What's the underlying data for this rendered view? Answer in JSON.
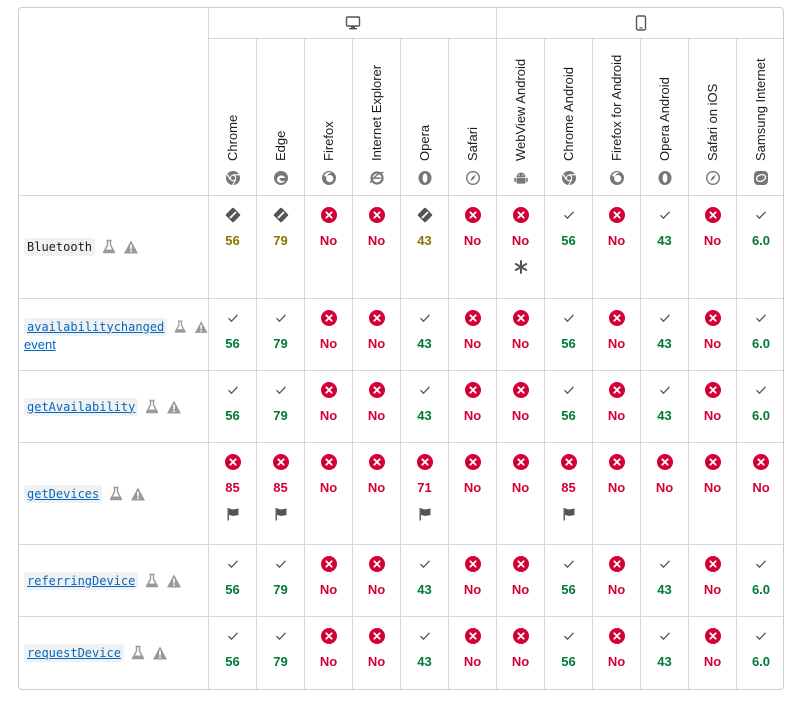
{
  "platforms": [
    {
      "name": "desktop-icon",
      "span": 6
    },
    {
      "name": "mobile-icon",
      "span": 6
    }
  ],
  "browsers": [
    {
      "label": "Chrome",
      "icon": "chrome"
    },
    {
      "label": "Edge",
      "icon": "edge"
    },
    {
      "label": "Firefox",
      "icon": "firefox"
    },
    {
      "label": "Internet Explorer",
      "icon": "ie"
    },
    {
      "label": "Opera",
      "icon": "opera"
    },
    {
      "label": "Safari",
      "icon": "safari"
    },
    {
      "label": "WebView Android",
      "icon": "webview"
    },
    {
      "label": "Chrome Android",
      "icon": "chrome"
    },
    {
      "label": "Firefox for Android",
      "icon": "firefox"
    },
    {
      "label": "Opera Android",
      "icon": "opera"
    },
    {
      "label": "Safari on iOS",
      "icon": "safari"
    },
    {
      "label": "Samsung Internet",
      "icon": "samsung"
    }
  ],
  "features": [
    {
      "name": "Bluetooth",
      "link": false,
      "event": "",
      "support": [
        {
          "t": "partial",
          "v": "56"
        },
        {
          "t": "partial",
          "v": "79"
        },
        {
          "t": "no",
          "v": "No"
        },
        {
          "t": "no",
          "v": "No"
        },
        {
          "t": "partial",
          "v": "43"
        },
        {
          "t": "no",
          "v": "No"
        },
        {
          "t": "no",
          "v": "No",
          "note": "asterisk"
        },
        {
          "t": "yes",
          "v": "56"
        },
        {
          "t": "no",
          "v": "No"
        },
        {
          "t": "yes",
          "v": "43"
        },
        {
          "t": "no",
          "v": "No"
        },
        {
          "t": "yes",
          "v": "6.0"
        }
      ]
    },
    {
      "name": "availabilitychanged",
      "link": true,
      "event": "event",
      "support": [
        {
          "t": "yes",
          "v": "56"
        },
        {
          "t": "yes",
          "v": "79"
        },
        {
          "t": "no",
          "v": "No"
        },
        {
          "t": "no",
          "v": "No"
        },
        {
          "t": "yes",
          "v": "43"
        },
        {
          "t": "no",
          "v": "No"
        },
        {
          "t": "no",
          "v": "No"
        },
        {
          "t": "yes",
          "v": "56"
        },
        {
          "t": "no",
          "v": "No"
        },
        {
          "t": "yes",
          "v": "43"
        },
        {
          "t": "no",
          "v": "No"
        },
        {
          "t": "yes",
          "v": "6.0"
        }
      ]
    },
    {
      "name": "getAvailability",
      "link": true,
      "event": "",
      "support": [
        {
          "t": "yes",
          "v": "56"
        },
        {
          "t": "yes",
          "v": "79"
        },
        {
          "t": "no",
          "v": "No"
        },
        {
          "t": "no",
          "v": "No"
        },
        {
          "t": "yes",
          "v": "43"
        },
        {
          "t": "no",
          "v": "No"
        },
        {
          "t": "no",
          "v": "No"
        },
        {
          "t": "yes",
          "v": "56"
        },
        {
          "t": "no",
          "v": "No"
        },
        {
          "t": "yes",
          "v": "43"
        },
        {
          "t": "no",
          "v": "No"
        },
        {
          "t": "yes",
          "v": "6.0"
        }
      ]
    },
    {
      "name": "getDevices",
      "link": true,
      "event": "",
      "support": [
        {
          "t": "removed",
          "v": "85",
          "note": "flag"
        },
        {
          "t": "removed",
          "v": "85",
          "note": "flag"
        },
        {
          "t": "no",
          "v": "No"
        },
        {
          "t": "no",
          "v": "No"
        },
        {
          "t": "removed",
          "v": "71",
          "note": "flag"
        },
        {
          "t": "no",
          "v": "No"
        },
        {
          "t": "no",
          "v": "No"
        },
        {
          "t": "removed",
          "v": "85",
          "note": "flag"
        },
        {
          "t": "no",
          "v": "No"
        },
        {
          "t": "no",
          "v": "No"
        },
        {
          "t": "no",
          "v": "No"
        },
        {
          "t": "no",
          "v": "No"
        }
      ]
    },
    {
      "name": "referringDevice",
      "link": true,
      "event": "",
      "support": [
        {
          "t": "yes",
          "v": "56"
        },
        {
          "t": "yes",
          "v": "79"
        },
        {
          "t": "no",
          "v": "No"
        },
        {
          "t": "no",
          "v": "No"
        },
        {
          "t": "yes",
          "v": "43"
        },
        {
          "t": "no",
          "v": "No"
        },
        {
          "t": "no",
          "v": "No"
        },
        {
          "t": "yes",
          "v": "56"
        },
        {
          "t": "no",
          "v": "No"
        },
        {
          "t": "yes",
          "v": "43"
        },
        {
          "t": "no",
          "v": "No"
        },
        {
          "t": "yes",
          "v": "6.0"
        }
      ]
    },
    {
      "name": "requestDevice",
      "link": true,
      "event": "",
      "support": [
        {
          "t": "yes",
          "v": "56"
        },
        {
          "t": "yes",
          "v": "79"
        },
        {
          "t": "no",
          "v": "No"
        },
        {
          "t": "no",
          "v": "No"
        },
        {
          "t": "yes",
          "v": "43"
        },
        {
          "t": "no",
          "v": "No"
        },
        {
          "t": "no",
          "v": "No"
        },
        {
          "t": "yes",
          "v": "56"
        },
        {
          "t": "no",
          "v": "No"
        },
        {
          "t": "yes",
          "v": "43"
        },
        {
          "t": "no",
          "v": "No"
        },
        {
          "t": "yes",
          "v": "6.0"
        }
      ]
    }
  ],
  "colors": {
    "yes": "#007936",
    "no": "#d30038",
    "partial": "#8a7300",
    "border": "#cdcdcd"
  }
}
